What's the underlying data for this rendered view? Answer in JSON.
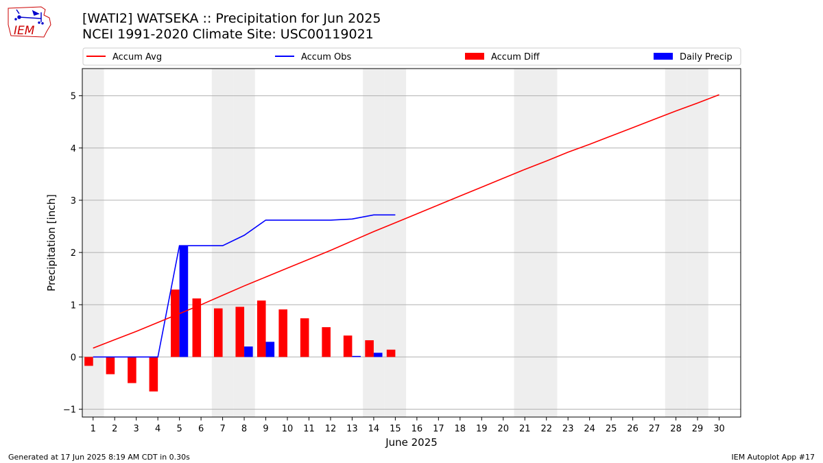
{
  "header": {
    "title_line1": "[WATI2] WATSEKA :: Precipitation for Jun 2025",
    "title_line2": "NCEI 1991-2020 Climate Site: USC00119021",
    "logo_text": "IEM"
  },
  "footer": {
    "left": "Generated at 17 Jun 2025 8:19 AM CDT in 0.30s",
    "right": "IEM Autoplot App #17"
  },
  "colors": {
    "accum_avg": "#ff0000",
    "accum_obs": "#0000ff",
    "accum_diff": "#ff0000",
    "daily_precip": "#0000ff",
    "weekend_shade": "#eeeeee",
    "grid": "#b0b0b0"
  },
  "chart_data": {
    "type": "bar",
    "xlabel": "June 2025",
    "ylabel": "Precipitation [inch]",
    "xlim": [
      0.5,
      31
    ],
    "ylim": [
      -1.15,
      5.52
    ],
    "yticks": [
      -1,
      0,
      1,
      2,
      3,
      4,
      5
    ],
    "grid": "horizontal",
    "legend_position": "top",
    "days": [
      1,
      2,
      3,
      4,
      5,
      6,
      7,
      8,
      9,
      10,
      11,
      12,
      13,
      14,
      15,
      16,
      17,
      18,
      19,
      20,
      21,
      22,
      23,
      24,
      25,
      26,
      27,
      28,
      29,
      30
    ],
    "weekend_days": [
      1,
      7,
      8,
      14,
      15,
      21,
      22,
      28,
      29
    ],
    "series": [
      {
        "name": "Accum Avg",
        "kind": "line",
        "x": [
          1,
          2,
          3,
          4,
          5,
          6,
          7,
          8,
          9,
          10,
          11,
          12,
          13,
          14,
          15,
          16,
          17,
          18,
          19,
          20,
          21,
          22,
          23,
          24,
          25,
          26,
          27,
          28,
          29,
          30
        ],
        "values": [
          0.17,
          0.33,
          0.49,
          0.66,
          0.83,
          1.0,
          1.18,
          1.36,
          1.53,
          1.7,
          1.87,
          2.04,
          2.22,
          2.4,
          2.57,
          2.74,
          2.91,
          3.08,
          3.25,
          3.42,
          3.59,
          3.75,
          3.92,
          4.07,
          4.23,
          4.39,
          4.55,
          4.71,
          4.86,
          5.02
        ]
      },
      {
        "name": "Accum Obs",
        "kind": "line",
        "x": [
          1,
          2,
          3,
          4,
          5,
          6,
          7,
          8,
          9,
          10,
          11,
          12,
          13,
          14,
          15
        ],
        "values": [
          0,
          0,
          0,
          0,
          2.13,
          2.13,
          2.13,
          2.33,
          2.62,
          2.62,
          2.62,
          2.62,
          2.64,
          2.72,
          2.72
        ]
      },
      {
        "name": "Accum Diff",
        "kind": "bar",
        "x": [
          1,
          2,
          3,
          4,
          5,
          6,
          7,
          8,
          9,
          10,
          11,
          12,
          13,
          14,
          15
        ],
        "values": [
          -0.17,
          -0.33,
          -0.5,
          -0.66,
          1.29,
          1.12,
          0.93,
          0.96,
          1.08,
          0.91,
          0.74,
          0.57,
          0.41,
          0.32,
          0.14
        ]
      },
      {
        "name": "Daily Precip",
        "kind": "bar",
        "x": [
          1,
          2,
          3,
          4,
          5,
          6,
          7,
          8,
          9,
          10,
          11,
          12,
          13,
          14,
          15
        ],
        "values": [
          0,
          0,
          0,
          0,
          2.13,
          0,
          0,
          0.2,
          0.29,
          0,
          0,
          0,
          0.02,
          0.08,
          0
        ]
      }
    ]
  }
}
